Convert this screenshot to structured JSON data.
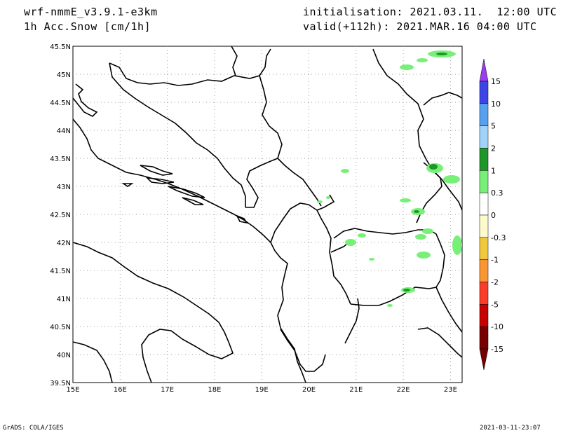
{
  "header": {
    "model": "wrf-nmmE_v3.9.1-e3km",
    "field": "1h Acc.Snow [cm/1h]",
    "initialisation": "initialisation: 2021.03.11.  12:00 UTC",
    "valid": "valid(+112h): 2021.MAR.16 04:00 UTC"
  },
  "footer": {
    "credit": "GrADS: COLA/IGES",
    "timestamp": "2021-03-11-23:07"
  },
  "map": {
    "lon_labels": [
      "15E",
      "16E",
      "17E",
      "18E",
      "19E",
      "20E",
      "21E",
      "22E",
      "23E"
    ],
    "lat_labels": [
      "45.5N",
      "45N",
      "44.5N",
      "44N",
      "43.5N",
      "43N",
      "42.5N",
      "42N",
      "41.5N",
      "41N",
      "40.5N",
      "40N",
      "39.5N"
    ],
    "grid": true
  },
  "colorbar": {
    "labels": [
      "15",
      "10",
      "5",
      "2",
      "1",
      "0.3",
      "0",
      "-0.3",
      "-1",
      "-2",
      "-5",
      "-10",
      "-15"
    ],
    "colors": [
      "#5a1eb4",
      "#3c46e6",
      "#56a0f0",
      "#a0d2fa",
      "#1e9628",
      "#78f078",
      "#ffffff",
      "#fffacc",
      "#f0c83c",
      "#fa9632",
      "#fa3c28",
      "#c80000",
      "#780000"
    ]
  }
}
